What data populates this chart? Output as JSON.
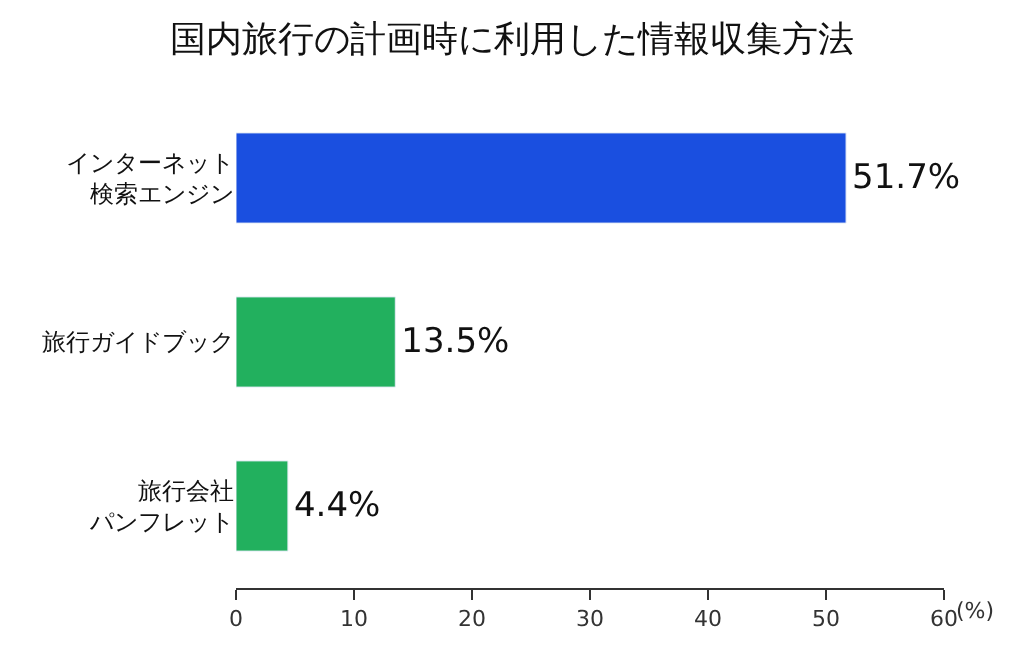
{
  "chart_data": {
    "type": "bar",
    "orientation": "horizontal",
    "title": "国内旅行の計画時に利用した情報収集方法",
    "xlabel": "(%)",
    "categories": [
      "インターネット検索エンジン",
      "旅行ガイドブック",
      "旅行会社パンフレット"
    ],
    "values": [
      51.7,
      13.5,
      4.4
    ],
    "colors": [
      "#1a4fe0",
      "#22b05e",
      "#22b05e"
    ],
    "value_labels": [
      "51.7%",
      "13.5%",
      "4.4%"
    ],
    "xlim": [
      0,
      60
    ],
    "xticks": [
      0,
      10,
      20,
      30,
      40,
      50,
      60
    ]
  }
}
